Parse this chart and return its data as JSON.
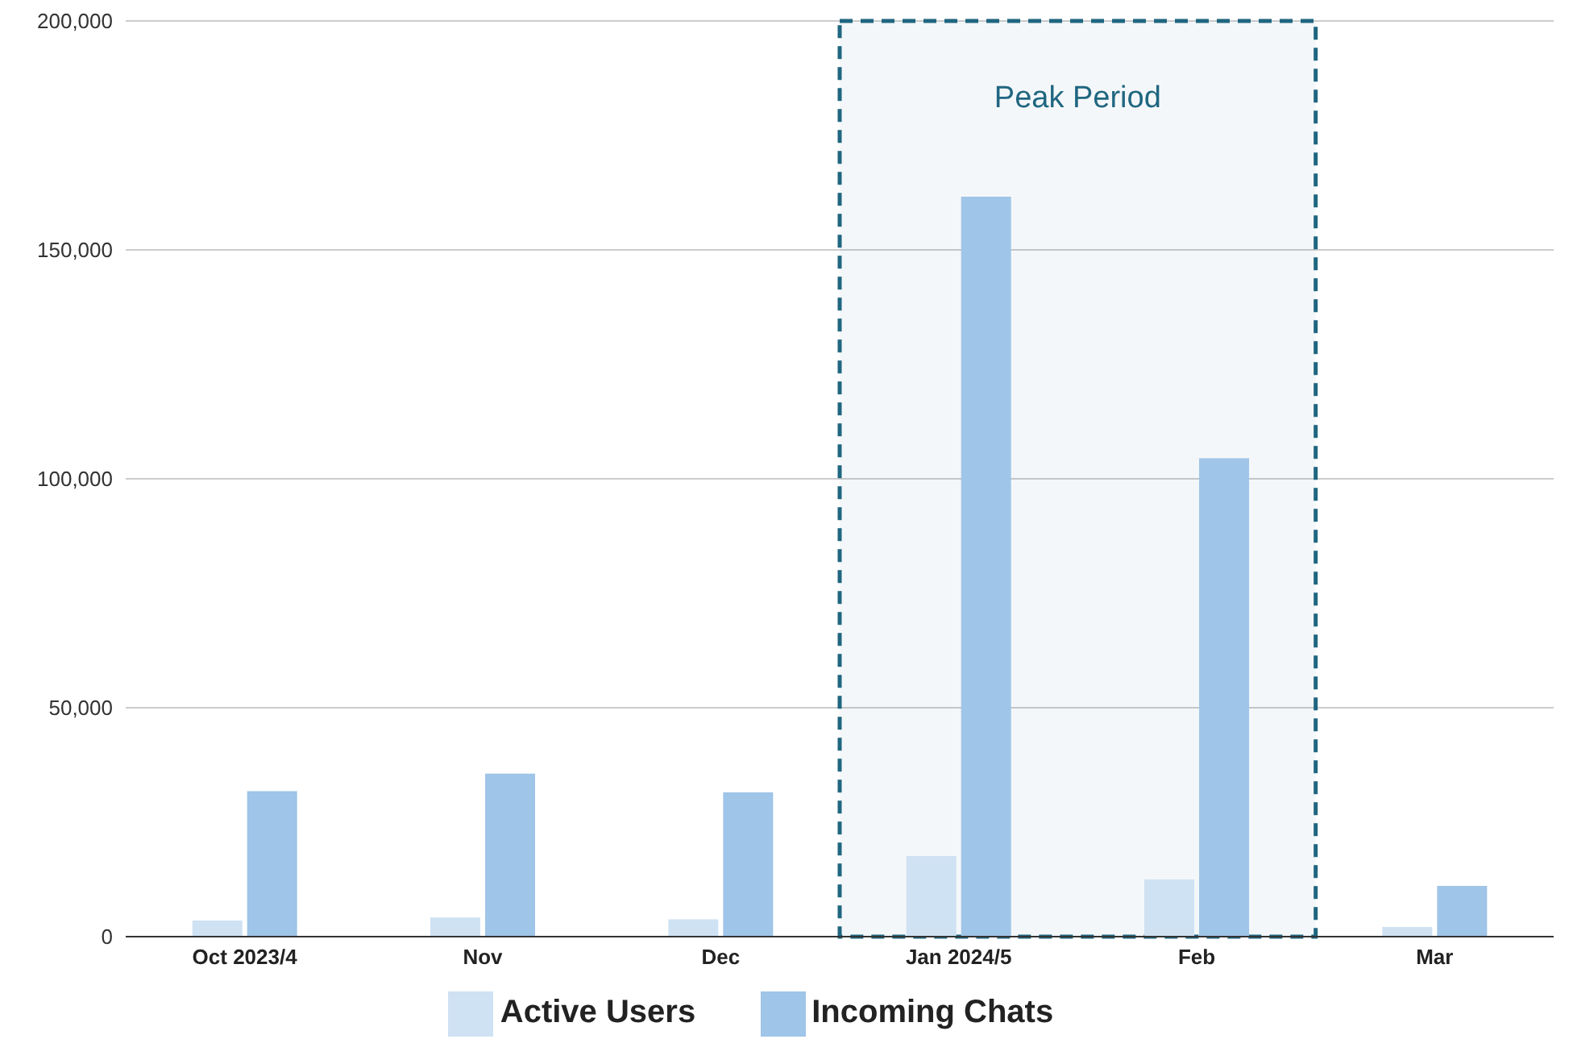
{
  "chart_data": {
    "type": "bar",
    "categories": [
      "Oct 2023/4",
      "Nov",
      "Dec",
      "Jan 2024/5",
      "Feb",
      "Mar"
    ],
    "series": [
      {
        "name": "Active Users",
        "color": "#cfe2f3",
        "values": [
          3500,
          4200,
          3800,
          17600,
          12500,
          2100
        ]
      },
      {
        "name": "Incoming Chats",
        "color": "#9fc5e8",
        "values": [
          31800,
          35600,
          31500,
          161600,
          104500,
          11100
        ]
      }
    ],
    "ylim": [
      0,
      200000
    ],
    "yticks": [
      {
        "value": 0,
        "label": "0"
      },
      {
        "value": 50000,
        "label": "50,000"
      },
      {
        "value": 100000,
        "label": "100,000"
      },
      {
        "value": 150000,
        "label": "150,000"
      },
      {
        "value": 200000,
        "label": "200,000"
      }
    ],
    "grid": "y",
    "legend": "bottom",
    "bands": [
      {
        "axis": "x",
        "from": "Jan 2024/5",
        "to": "Feb",
        "label": "Peak Period",
        "color": "#1f6680"
      }
    ]
  }
}
